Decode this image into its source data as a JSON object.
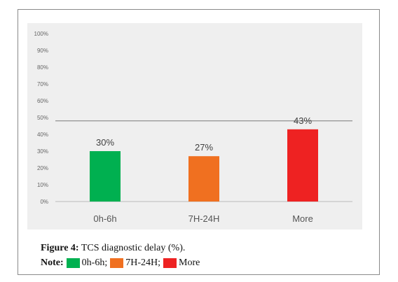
{
  "chart_data": {
    "type": "bar",
    "categories": [
      "0h-6h",
      "7H-24H",
      "More"
    ],
    "values": [
      30,
      27,
      43
    ],
    "data_labels": [
      "30%",
      "27%",
      "43%"
    ],
    "colors": [
      "#00b050",
      "#f07020",
      "#ee2222"
    ],
    "yticks": [
      "0%",
      "10%",
      "20%",
      "30%",
      "40%",
      "50%",
      "60%",
      "70%",
      "80%",
      "90%",
      "100%"
    ],
    "ylim": [
      0,
      100
    ],
    "reference_line": 48,
    "grid": false
  },
  "caption": {
    "label": "Figure 4:",
    "text": "TCS diagnostic delay (%)."
  },
  "note": {
    "label": "Note:",
    "items": [
      {
        "label": "0h-6h;",
        "color": "#00b050"
      },
      {
        "label": "7H-24H;",
        "color": "#f07020"
      },
      {
        "label": "More",
        "color": "#ee2222"
      }
    ]
  }
}
